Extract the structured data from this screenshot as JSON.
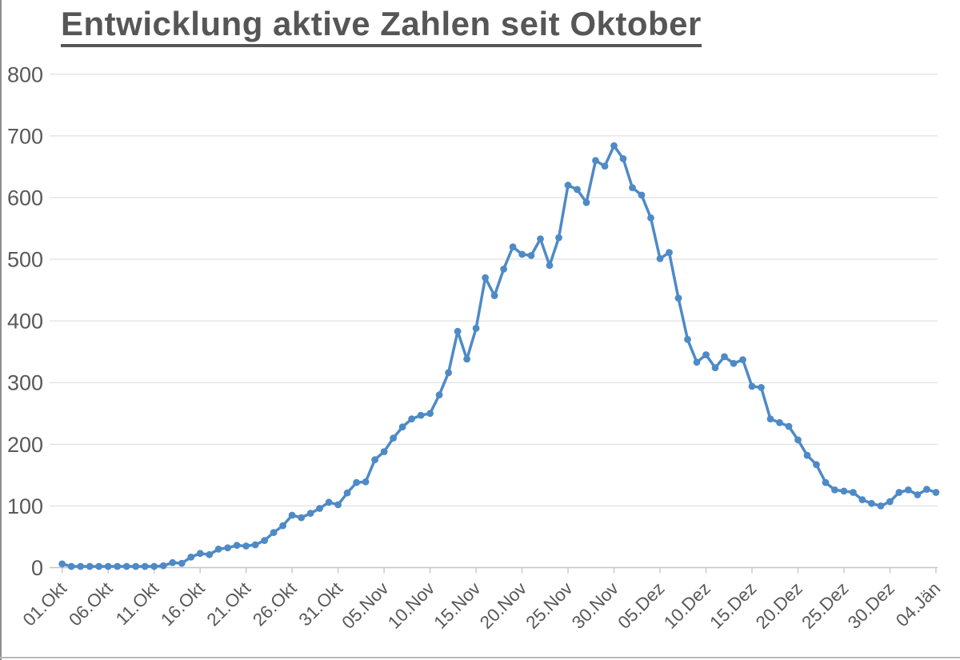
{
  "window": {
    "background": "#ffffff",
    "left_edge_color": "#8f8f8f",
    "bottom_edge_color": "#b9b9b9"
  },
  "chart_data": {
    "type": "line",
    "title": "Entwicklung aktive Zahlen seit Oktober",
    "xlabel": "",
    "ylabel": "",
    "ylim": [
      0,
      800
    ],
    "y_ticks": [
      0,
      100,
      200,
      300,
      400,
      500,
      600,
      700,
      800
    ],
    "grid": true,
    "legend_position": "none",
    "series_name": "aktive Zahlen",
    "series_color": "#4e8ac6",
    "grid_color": "#d9d9d9",
    "axis_color": "#c6c6c6",
    "label_color": "#595959",
    "title_color": "#565656",
    "x_tick_every": 5,
    "x_tick_labels": [
      "01.Okt",
      "06.Okt",
      "11.Okt",
      "16.Okt",
      "21.Okt",
      "26.Okt",
      "31.Okt",
      "05.Nov",
      "10.Nov",
      "15.Nov",
      "20.Nov",
      "25.Nov",
      "30.Nov",
      "05.Dez",
      "10.Dez",
      "15.Dez",
      "20.Dez",
      "25.Dez",
      "30.Dez",
      "04.Jän"
    ],
    "x_range_note": "daily values from 01.Okt to 04.Jän (96 days)",
    "values": [
      6,
      2,
      2,
      2,
      2,
      2,
      2,
      2,
      2,
      2,
      2,
      3,
      8,
      7,
      17,
      23,
      21,
      30,
      32,
      36,
      35,
      37,
      44,
      57,
      68,
      85,
      81,
      88,
      96,
      106,
      102,
      121,
      138,
      139,
      175,
      188,
      210,
      228,
      241,
      247,
      250,
      280,
      316,
      383,
      338,
      388,
      470,
      441,
      484,
      520,
      508,
      506,
      533,
      490,
      535,
      620,
      613,
      592,
      660,
      651,
      684,
      663,
      616,
      604,
      567,
      501,
      511,
      437,
      370,
      333,
      345,
      324,
      342,
      331,
      337,
      294,
      292,
      241,
      235,
      229,
      207,
      182,
      167,
      138,
      126,
      124,
      122,
      110,
      104,
      100,
      107,
      122,
      126,
      118,
      127,
      122
    ]
  }
}
